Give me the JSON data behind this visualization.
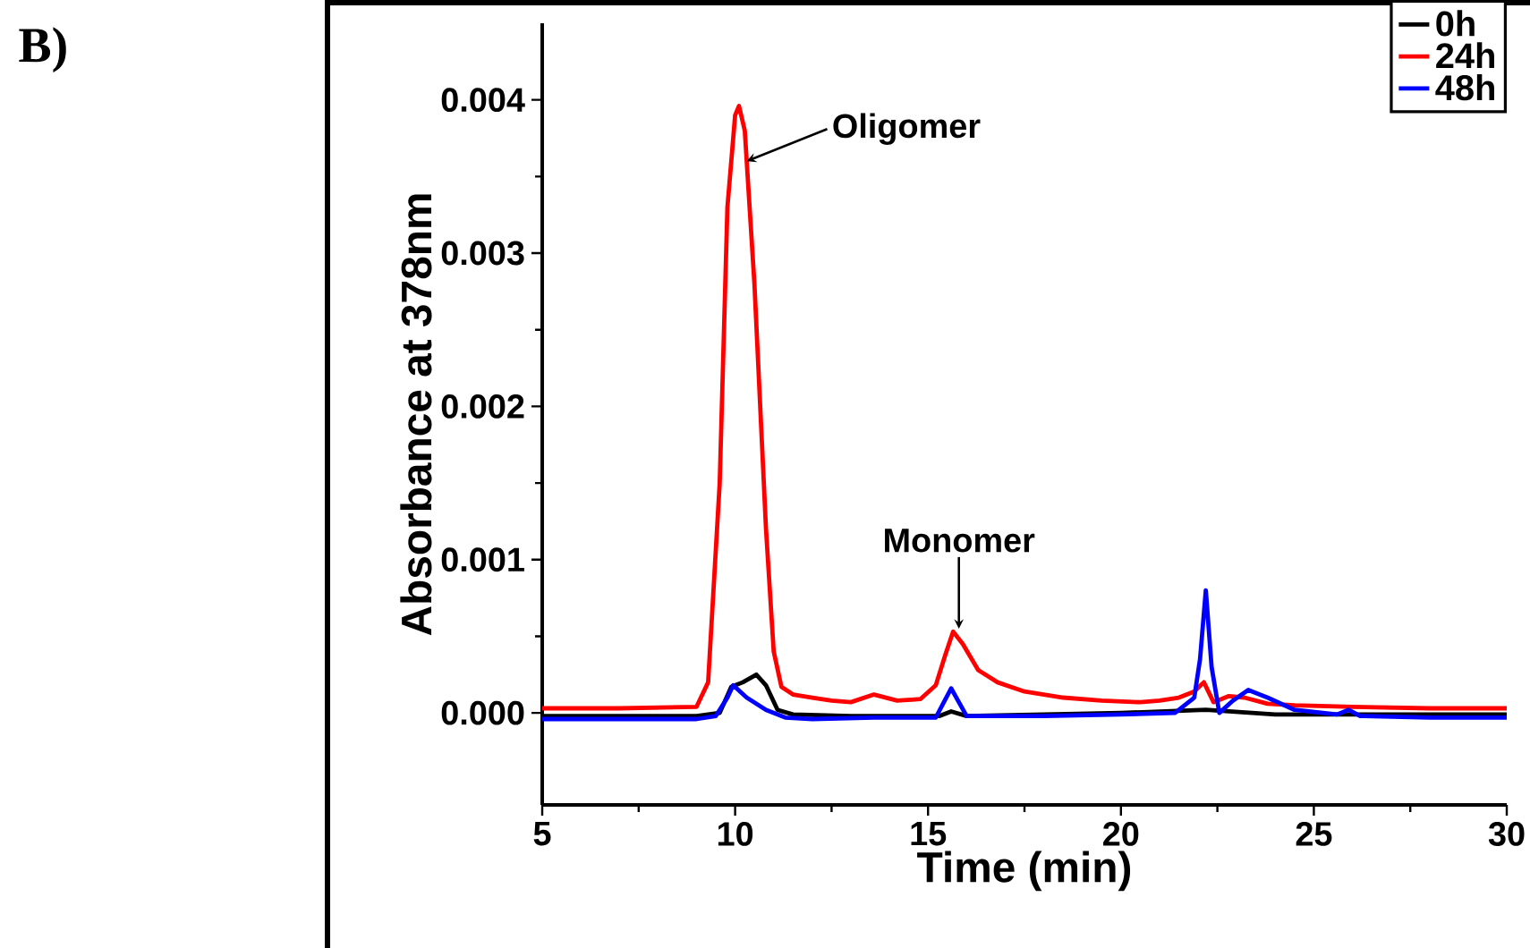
{
  "chart_data": {
    "type": "line",
    "xlabel": "Time (min)",
    "ylabel": "Absorbance at 378nm",
    "xlim": [
      5,
      30
    ],
    "ylim": [
      -0.0006,
      0.0045
    ],
    "xticks": [
      5,
      10,
      15,
      20,
      25,
      30
    ],
    "yticks": [
      {
        "value": 0,
        "label": "0.000"
      },
      {
        "value": 0.001,
        "label": "0.001"
      },
      {
        "value": 0.002,
        "label": "0.002"
      },
      {
        "value": 0.003,
        "label": "0.003"
      },
      {
        "value": 0.004,
        "label": "0.004"
      }
    ],
    "legend": "top right",
    "marker": "none",
    "line_style": "solid",
    "annotations": [
      "B)",
      {
        "text": "Oligomer",
        "x": 10.3,
        "y": 0.0036
      },
      {
        "text": "Monomer",
        "x": 15.8,
        "y": 0.00055
      }
    ],
    "series": [
      {
        "name": "0h",
        "color": "#000000",
        "x": [
          5,
          9,
          9.6,
          9.9,
          10.2,
          10.55,
          10.8,
          11.1,
          11.5,
          13,
          15.3,
          15.6,
          16,
          20,
          22.2,
          24,
          27,
          30
        ],
        "values": [
          -2e-05,
          -2e-05,
          0.0,
          0.00017,
          0.0002,
          0.00025,
          0.00018,
          2e-05,
          -1e-05,
          -2e-05,
          -2e-05,
          1e-05,
          -2e-05,
          0.0,
          2e-05,
          -1e-05,
          -1e-05,
          -1e-05
        ]
      },
      {
        "name": "24h",
        "color": "#ff0000",
        "x": [
          5,
          7,
          9,
          9.3,
          9.6,
          9.8,
          10.0,
          10.1,
          10.25,
          10.5,
          10.8,
          11.0,
          11.2,
          11.5,
          12,
          12.5,
          13,
          13.6,
          14.2,
          14.8,
          15.2,
          15.45,
          15.65,
          15.9,
          16.3,
          16.8,
          17.5,
          18.5,
          19.5,
          20.5,
          21,
          21.5,
          21.9,
          22.15,
          22.4,
          22.8,
          23.2,
          23.8,
          24.5,
          26,
          28,
          30
        ],
        "values": [
          3e-05,
          3e-05,
          4e-05,
          0.0002,
          0.0015,
          0.0033,
          0.0039,
          0.00396,
          0.0038,
          0.0028,
          0.0012,
          0.0004,
          0.00017,
          0.00012,
          0.0001,
          8e-05,
          7e-05,
          0.00012,
          8e-05,
          9e-05,
          0.00018,
          0.00038,
          0.00053,
          0.00045,
          0.00028,
          0.0002,
          0.00014,
          0.0001,
          8e-05,
          7e-05,
          8e-05,
          0.0001,
          0.00014,
          0.0002,
          7e-05,
          0.00011,
          0.0001,
          6e-05,
          5e-05,
          4e-05,
          3e-05,
          3e-05
        ]
      },
      {
        "name": "48h",
        "color": "#0000ff",
        "x": [
          5,
          9,
          9.5,
          9.8,
          9.95,
          10.3,
          10.8,
          11.3,
          12,
          13.6,
          15.2,
          15.6,
          16,
          18,
          20,
          21.4,
          21.9,
          22.05,
          22.2,
          22.35,
          22.55,
          22.9,
          23.3,
          23.8,
          24.5,
          25.6,
          25.9,
          26.2,
          28,
          30
        ],
        "values": [
          -4e-05,
          -4e-05,
          -2e-05,
          0.0001,
          0.00018,
          0.0001,
          2e-05,
          -3e-05,
          -4e-05,
          -3e-05,
          -3e-05,
          0.00016,
          -2e-05,
          -2e-05,
          -1e-05,
          0.0,
          0.0001,
          0.00035,
          0.0008,
          0.0003,
          0.0,
          8e-05,
          0.00015,
          0.0001,
          2e-05,
          -1e-05,
          2e-05,
          -2e-05,
          -3e-05,
          -3e-05
        ]
      }
    ]
  }
}
